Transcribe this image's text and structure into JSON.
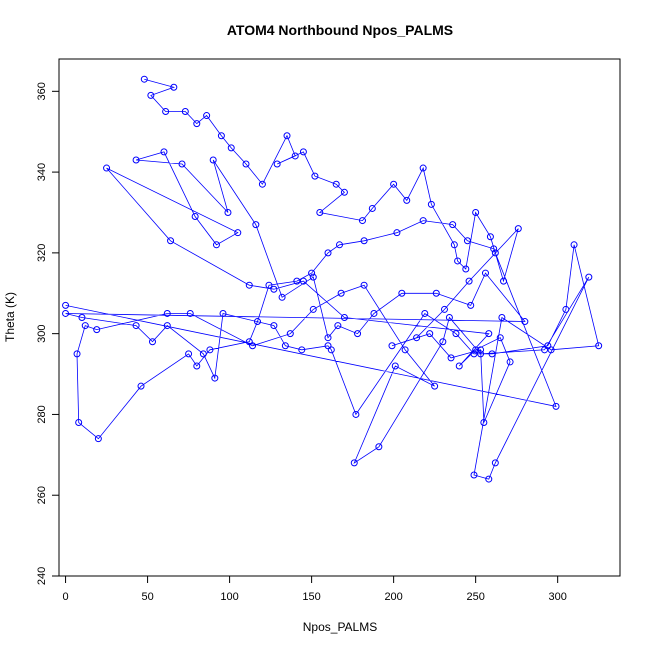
{
  "chart_data": {
    "type": "line",
    "title": "ATOM4 Northbound Npos_PALMS",
    "xlabel": "Npos_PALMS",
    "ylabel": "Theta (K)",
    "xlim": [
      -4,
      338
    ],
    "ylim": [
      240,
      368
    ],
    "x_ticks": [
      0,
      50,
      100,
      150,
      200,
      250,
      300
    ],
    "y_ticks": [
      240,
      260,
      280,
      300,
      320,
      340,
      360
    ],
    "grid": false,
    "legend": "none",
    "series_color": "#0000ff",
    "series": [
      {
        "x": [
          48,
          66,
          52,
          61,
          73,
          80,
          86,
          95,
          101,
          110,
          120,
          135,
          140,
          129,
          145,
          152,
          165,
          170,
          155,
          181,
          187,
          200,
          208,
          218,
          223,
          237,
          239,
          244,
          250,
          259,
          262,
          267,
          276,
          246,
          231,
          214,
          199,
          222,
          235,
          253,
          255,
          271,
          265,
          250,
          240,
          258,
          170,
          145,
          127,
          112,
          64,
          25,
          105,
          92,
          79,
          60,
          43,
          71,
          99,
          90,
          116,
          132,
          151,
          160,
          166,
          178,
          188,
          205,
          226,
          247,
          256,
          280,
          0,
          10,
          43,
          53,
          62,
          84,
          91,
          96,
          127,
          134,
          144,
          160,
          162,
          177,
          219,
          238,
          249,
          260,
          294,
          305,
          310,
          325,
          296,
          266,
          249,
          258,
          262,
          319,
          292,
          253,
          234,
          230,
          191,
          176,
          201,
          225,
          207,
          182,
          168,
          151,
          137,
          114,
          76,
          62,
          19,
          12,
          7,
          8,
          20,
          46,
          75,
          80,
          88,
          112,
          117,
          124,
          141,
          150,
          160,
          167,
          182,
          202,
          218,
          236,
          245,
          261,
          299,
          0
        ],
        "y": [
          363,
          361,
          359,
          355,
          355,
          352,
          354,
          349,
          346,
          342,
          337,
          349,
          344,
          342,
          345,
          339,
          337,
          335,
          330,
          328,
          331,
          337,
          333,
          341,
          332,
          322,
          318,
          316,
          330,
          324,
          320,
          313,
          326,
          313,
          306,
          299,
          297,
          300,
          294,
          296,
          278,
          293,
          299,
          296,
          292,
          300,
          304,
          313,
          311,
          312,
          323,
          341,
          325,
          322,
          329,
          345,
          343,
          342,
          330,
          343,
          327,
          309,
          314,
          299,
          302,
          300,
          305,
          310,
          310,
          307,
          315,
          303,
          305,
          304,
          302,
          298,
          302,
          295,
          289,
          305,
          302,
          297,
          296,
          297,
          296,
          280,
          305,
          300,
          295,
          295,
          297,
          306,
          322,
          297,
          296,
          304,
          265,
          264,
          268,
          314,
          296,
          295,
          304,
          298,
          272,
          268,
          292,
          287,
          296,
          312,
          310,
          306,
          300,
          297,
          305,
          305,
          301,
          302,
          295,
          278,
          274,
          287,
          295,
          292,
          296,
          298,
          303,
          312,
          313,
          315,
          320,
          322,
          323,
          325,
          328,
          327,
          323,
          321,
          282,
          307
        ]
      }
    ]
  }
}
